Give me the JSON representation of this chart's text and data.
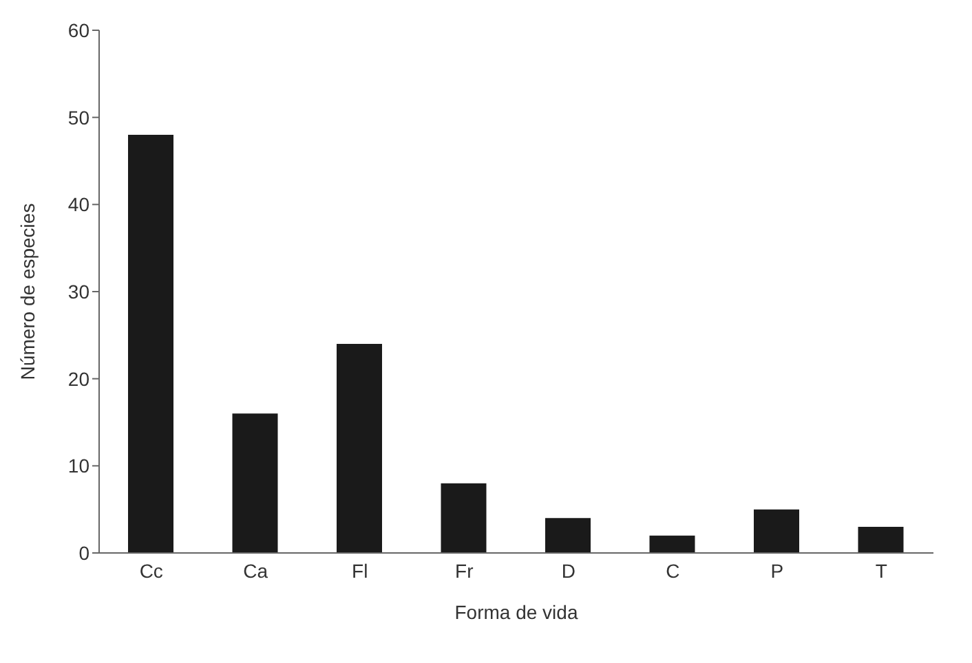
{
  "chart_data": {
    "type": "bar",
    "xlabel": "Forma de vida",
    "ylabel": "Número de especies",
    "categories": [
      "Cc",
      "Ca",
      "Fl",
      "Fr",
      "D",
      "C",
      "P",
      "T"
    ],
    "values": [
      48,
      16,
      24,
      8,
      4,
      2,
      5,
      3
    ],
    "color": "#1a1a1a",
    "ylim": [
      0,
      60
    ],
    "yticks": [
      0,
      10,
      20,
      30,
      40,
      50,
      60
    ],
    "grid": false
  }
}
